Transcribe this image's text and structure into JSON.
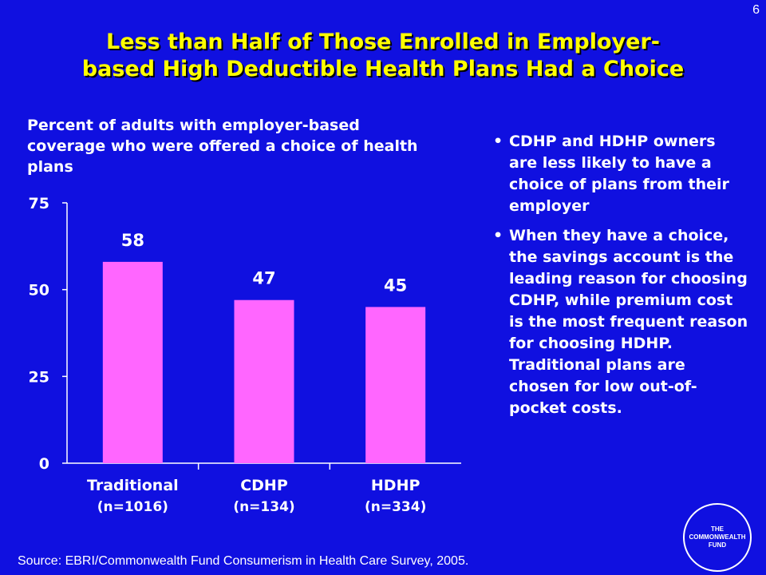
{
  "slide_number": "6",
  "title_lines": [
    "Less than Half of Those Enrolled in Employer-",
    "based High Deductible Health Plans Had a Choice"
  ],
  "chart_caption": "Percent of adults with employer-based coverage who were offered a choice of health plans",
  "bullets": [
    "CDHP and HDHP owners are less likely to have a choice of plans from their employer",
    "When they have a choice, the savings account is the leading reason for choosing CDHP, while premium cost is the most frequent reason for choosing HDHP. Traditional plans are chosen for low out-of-pocket costs."
  ],
  "source": "Source:  EBRI/Commonwealth Fund Consumerism in Health Care Survey, 2005.",
  "seal_text": "THE\nCOMMONWEALTH\nFUND",
  "colors": {
    "background": "#1010e0",
    "title": "#ffff00",
    "bar": "#ff66ff",
    "text": "#ffffff"
  },
  "chart_data": {
    "type": "bar",
    "title": "Percent of adults with employer-based coverage who were offered a choice of health plans",
    "categories": [
      "Traditional",
      "CDHP",
      "HDHP"
    ],
    "category_sublabels": [
      "(n=1016)",
      "(n=134)",
      "(n=334)"
    ],
    "values": [
      58,
      47,
      45
    ],
    "data_labels": [
      "58",
      "47",
      "45"
    ],
    "ylim": [
      0,
      75
    ],
    "yticks": [
      0,
      25,
      50,
      75
    ],
    "grid": false,
    "xlabel": "",
    "ylabel": ""
  }
}
